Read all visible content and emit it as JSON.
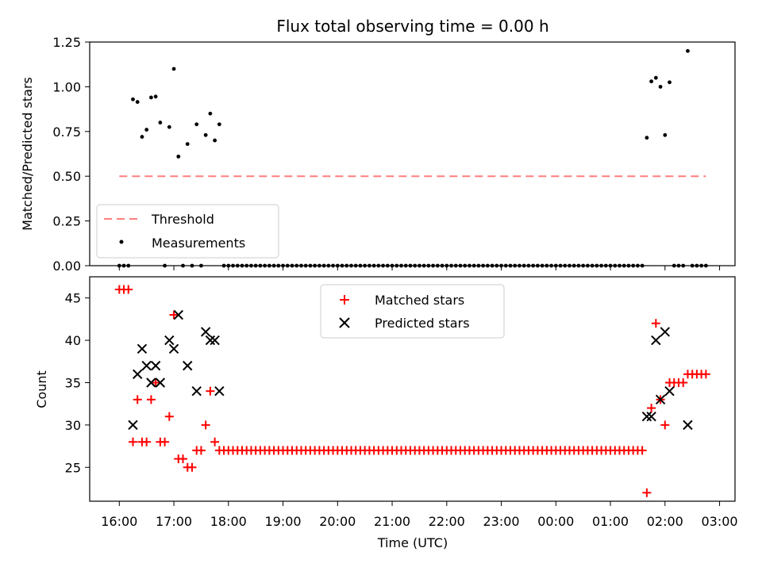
{
  "chart_data": [
    {
      "type": "scatter",
      "title": "Flux total observing time = 0.00 h",
      "ylabel": "Matched/Predicted stars",
      "xlabel": "",
      "ylim": [
        0,
        1.25
      ],
      "yticks": [
        "0.00",
        "0.25",
        "0.50",
        "0.75",
        "1.00",
        "1.25"
      ],
      "legend_position": "lower-left",
      "threshold": {
        "name": "Threshold",
        "value": 0.5,
        "x_start": "16:00",
        "x_end": "02:45",
        "style": "dashed",
        "color": "#ff7f7f"
      },
      "series": [
        {
          "name": "Measurements",
          "color": "#000000",
          "marker": "dot",
          "points": [
            [
              "16:00",
              0
            ],
            [
              "16:05",
              0
            ],
            [
              "16:10",
              0
            ],
            [
              "16:15",
              0.93
            ],
            [
              "16:20",
              0.915
            ],
            [
              "16:25",
              0.72
            ],
            [
              "16:30",
              0.76
            ],
            [
              "16:35",
              0.94
            ],
            [
              "16:40",
              0.945
            ],
            [
              "16:45",
              0.8
            ],
            [
              "16:50",
              0
            ],
            [
              "16:55",
              0.775
            ],
            [
              "17:00",
              1.1
            ],
            [
              "17:05",
              0.61
            ],
            [
              "17:10",
              0
            ],
            [
              "17:15",
              0.68
            ],
            [
              "17:20",
              0
            ],
            [
              "17:25",
              0.79
            ],
            [
              "17:30",
              0
            ],
            [
              "17:35",
              0.73
            ],
            [
              "17:40",
              0.85
            ],
            [
              "17:45",
              0.7
            ],
            [
              "17:50",
              0.79
            ],
            [
              "01:40",
              0.715
            ],
            [
              "01:45",
              1.03
            ],
            [
              "01:50",
              1.05
            ],
            [
              "01:55",
              1.0
            ],
            [
              "02:00",
              0.73
            ],
            [
              "02:05",
              1.025
            ],
            [
              "02:10",
              0
            ],
            [
              "02:15",
              0
            ],
            [
              "02:20",
              0
            ],
            [
              "02:25",
              1.2
            ],
            [
              "02:30",
              0
            ],
            [
              "02:35",
              0
            ],
            [
              "02:40",
              0
            ],
            [
              "02:45",
              0
            ]
          ],
          "zero_run": {
            "from": "17:55",
            "to": "01:35",
            "step_minutes": 5,
            "value": 0
          }
        }
      ]
    },
    {
      "type": "scatter",
      "title": "",
      "ylabel": "Count",
      "xlabel": "Time (UTC)",
      "ylim": [
        21,
        47.5
      ],
      "yticks": [
        "25",
        "30",
        "35",
        "40",
        "45"
      ],
      "xticks": [
        "16:00",
        "17:00",
        "18:00",
        "19:00",
        "20:00",
        "21:00",
        "22:00",
        "23:00",
        "00:00",
        "01:00",
        "02:00",
        "03:00"
      ],
      "legend_position": "top-center",
      "series": [
        {
          "name": "Matched stars",
          "color": "#ff0000",
          "marker": "plus",
          "points": [
            [
              "16:00",
              46
            ],
            [
              "16:05",
              46
            ],
            [
              "16:10",
              46
            ],
            [
              "16:15",
              28
            ],
            [
              "16:20",
              33
            ],
            [
              "16:25",
              28
            ],
            [
              "16:30",
              28
            ],
            [
              "16:35",
              33
            ],
            [
              "16:40",
              35
            ],
            [
              "16:45",
              28
            ],
            [
              "16:50",
              28
            ],
            [
              "16:55",
              31
            ],
            [
              "17:00",
              43
            ],
            [
              "17:05",
              26
            ],
            [
              "17:10",
              26
            ],
            [
              "17:15",
              25
            ],
            [
              "17:20",
              25
            ],
            [
              "17:25",
              27
            ],
            [
              "17:30",
              27
            ],
            [
              "17:35",
              30
            ],
            [
              "17:40",
              34
            ],
            [
              "17:45",
              28
            ],
            [
              "17:50",
              27
            ],
            [
              "01:40",
              22
            ],
            [
              "01:45",
              32
            ],
            [
              "01:50",
              42
            ],
            [
              "01:55",
              33
            ],
            [
              "02:00",
              30
            ],
            [
              "02:05",
              35
            ],
            [
              "02:10",
              35
            ],
            [
              "02:15",
              35
            ],
            [
              "02:20",
              35
            ],
            [
              "02:25",
              36
            ],
            [
              "02:30",
              36
            ],
            [
              "02:35",
              36
            ],
            [
              "02:40",
              36
            ],
            [
              "02:45",
              36
            ]
          ],
          "constant_run": {
            "from": "17:55",
            "to": "01:35",
            "step_minutes": 5,
            "value": 27
          }
        },
        {
          "name": "Predicted stars",
          "color": "#000000",
          "marker": "x",
          "points": [
            [
              "16:15",
              30
            ],
            [
              "16:20",
              36
            ],
            [
              "16:25",
              39
            ],
            [
              "16:30",
              37
            ],
            [
              "16:35",
              35
            ],
            [
              "16:40",
              37
            ],
            [
              "16:45",
              35
            ],
            [
              "16:55",
              40
            ],
            [
              "17:00",
              39
            ],
            [
              "17:05",
              43
            ],
            [
              "17:15",
              37
            ],
            [
              "17:25",
              34
            ],
            [
              "17:35",
              41
            ],
            [
              "17:40",
              40
            ],
            [
              "17:45",
              40
            ],
            [
              "17:50",
              34
            ],
            [
              "01:40",
              31
            ],
            [
              "01:45",
              31
            ],
            [
              "01:50",
              40
            ],
            [
              "01:55",
              33
            ],
            [
              "02:00",
              41
            ],
            [
              "02:05",
              34
            ],
            [
              "02:25",
              30
            ]
          ]
        }
      ]
    }
  ]
}
